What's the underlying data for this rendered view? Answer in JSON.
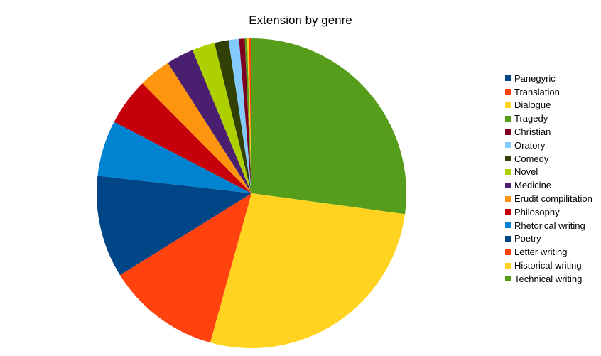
{
  "chart_data": {
    "type": "pie",
    "title": "Extension by genre",
    "legend_position": "right",
    "start": "top",
    "direction": "clockwise",
    "slices": [
      {
        "label": "Technical writing",
        "value": 27.5,
        "color": "#579d1c"
      },
      {
        "label": "Historical writing",
        "value": 27.5,
        "color": "#ffd320"
      },
      {
        "label": "Letter writing",
        "value": 12.0,
        "color": "#ff420e"
      },
      {
        "label": "Poetry",
        "value": 10.8,
        "color": "#004586"
      },
      {
        "label": "Rhetorical writing",
        "value": 5.9,
        "color": "#0084d1"
      },
      {
        "label": "Philosophy",
        "value": 5.0,
        "color": "#c5000b"
      },
      {
        "label": "Erudit compilitation",
        "value": 3.4,
        "color": "#ff950e"
      },
      {
        "label": "Medicine",
        "value": 2.9,
        "color": "#4b1f6f"
      },
      {
        "label": "Novel",
        "value": 2.4,
        "color": "#aecf00"
      },
      {
        "label": "Comedy",
        "value": 1.5,
        "color": "#314004"
      },
      {
        "label": "Oratory",
        "value": 1.1,
        "color": "#83caff"
      },
      {
        "label": "Christian",
        "value": 0.6,
        "color": "#7e0021"
      },
      {
        "label": "Tragedy",
        "value": 0.25,
        "color": "#579d1c"
      },
      {
        "label": "Dialogue",
        "value": 0.2,
        "color": "#ffd320"
      },
      {
        "label": "Translation",
        "value": 0.2,
        "color": "#ff420e"
      },
      {
        "label": "Panegyric",
        "value": 0.05,
        "color": "#004586"
      }
    ],
    "legend_order": [
      "Panegyric",
      "Translation",
      "Dialogue",
      "Tragedy",
      "Christian",
      "Oratory",
      "Comedy",
      "Novel",
      "Medicine",
      "Erudit compilitation",
      "Philosophy",
      "Rhetorical writing",
      "Poetry",
      "Letter writing",
      "Historical writing",
      "Technical writing"
    ]
  }
}
